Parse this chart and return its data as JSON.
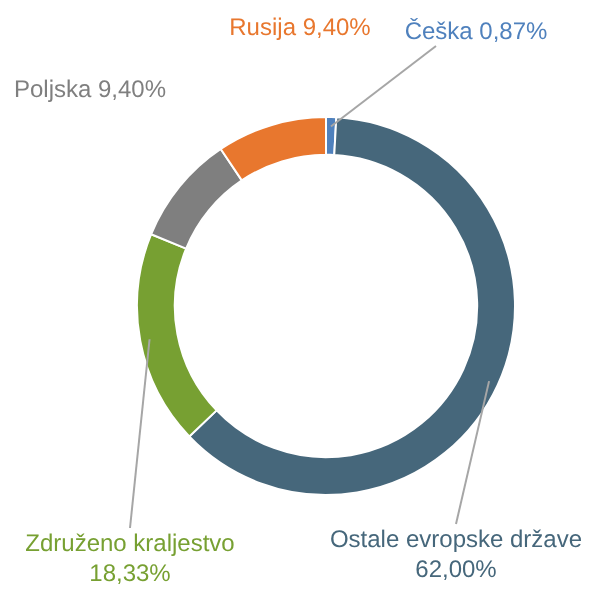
{
  "chart_data": {
    "type": "donut",
    "categories": [
      "Češka",
      "Ostale evropske države",
      "Združeno kraljestvo",
      "Poljska",
      "Rusija"
    ],
    "values": [
      0.87,
      62.0,
      18.33,
      9.4,
      9.4
    ],
    "value_labels": [
      "0,87%",
      "62,00%",
      "18,33%",
      "9,40%",
      "9,40%"
    ],
    "colors": [
      "#4f81bd",
      "#46677b",
      "#77a032",
      "#7f7f7f",
      "#e8772e"
    ],
    "legend": false
  }
}
